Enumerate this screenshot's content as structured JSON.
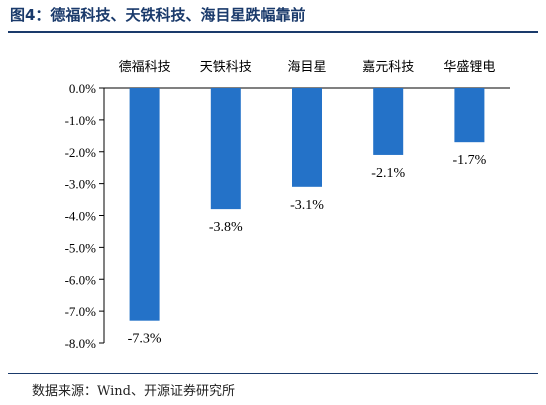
{
  "figure": {
    "title": "图4：德福科技、天铁科技、海目星跌幅靠前",
    "source": "数据来源：Wind、开源证券研究所"
  },
  "chart_data": {
    "type": "bar",
    "title": "",
    "xlabel": "",
    "ylabel": "",
    "categories": [
      "德福科技",
      "天铁科技",
      "海目星",
      "嘉元科技",
      "华盛锂电"
    ],
    "values": [
      -7.3,
      -3.8,
      -3.1,
      -2.1,
      -1.7
    ],
    "data_labels": [
      "-7.3%",
      "-3.8%",
      "-3.1%",
      "-2.1%",
      "-1.7%"
    ],
    "ylim": [
      -8.0,
      0.0
    ],
    "yticks": [
      0,
      -1,
      -2,
      -3,
      -4,
      -5,
      -6,
      -7,
      -8
    ],
    "ytick_labels": [
      "0.0%",
      "-1.0%",
      "-2.0%",
      "-3.0%",
      "-4.0%",
      "-5.0%",
      "-6.0%",
      "-7.0%",
      "-8.0%"
    ],
    "bar_color": "#2472c8",
    "grid": false,
    "legend": false
  }
}
